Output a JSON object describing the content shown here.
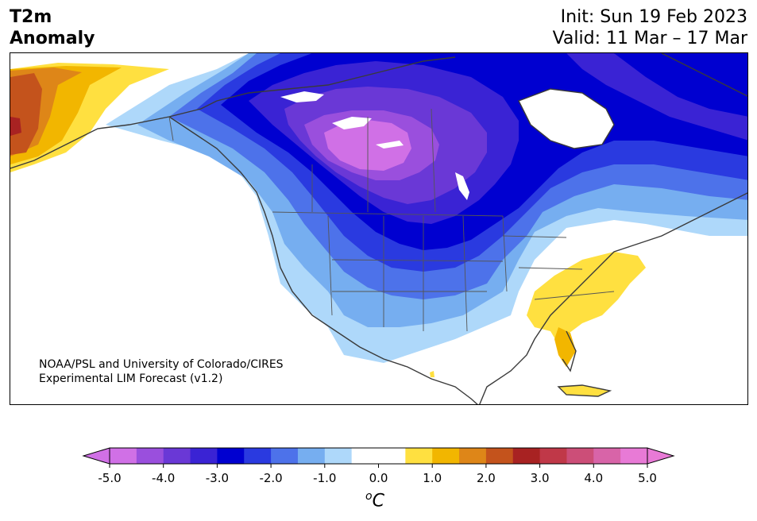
{
  "header": {
    "title_line1": "T2m",
    "title_line2": "Anomaly",
    "init": "Init: Sun 19 Feb 2023",
    "valid": "Valid: 11 Mar – 17 Mar"
  },
  "credit": {
    "line1": "NOAA/PSL and University of Colorado/CIRES",
    "line2": "Experimental LIM Forecast (v1.2)"
  },
  "colorbar": {
    "unit_base": "C",
    "unit_sup": "o",
    "ticks": [
      "-5.0",
      "-4.0",
      "-3.0",
      "-2.0",
      "-1.0",
      "0.0",
      "1.0",
      "2.0",
      "3.0",
      "4.0",
      "5.0"
    ],
    "colors": [
      "#d070e6",
      "#9a4fdd",
      "#6a38d6",
      "#3a23d4",
      "#0000d0",
      "#2a3ae0",
      "#4d72ea",
      "#76aef0",
      "#aed8fa",
      "#ffffff",
      "#ffffff",
      "#ffe040",
      "#f2b600",
      "#de8618",
      "#c4531c",
      "#a82222",
      "#c03848",
      "#cc4e78",
      "#d864a8",
      "#e87ad6"
    ],
    "min_color": "#d070e6",
    "max_color": "#e87ad6"
  }
}
